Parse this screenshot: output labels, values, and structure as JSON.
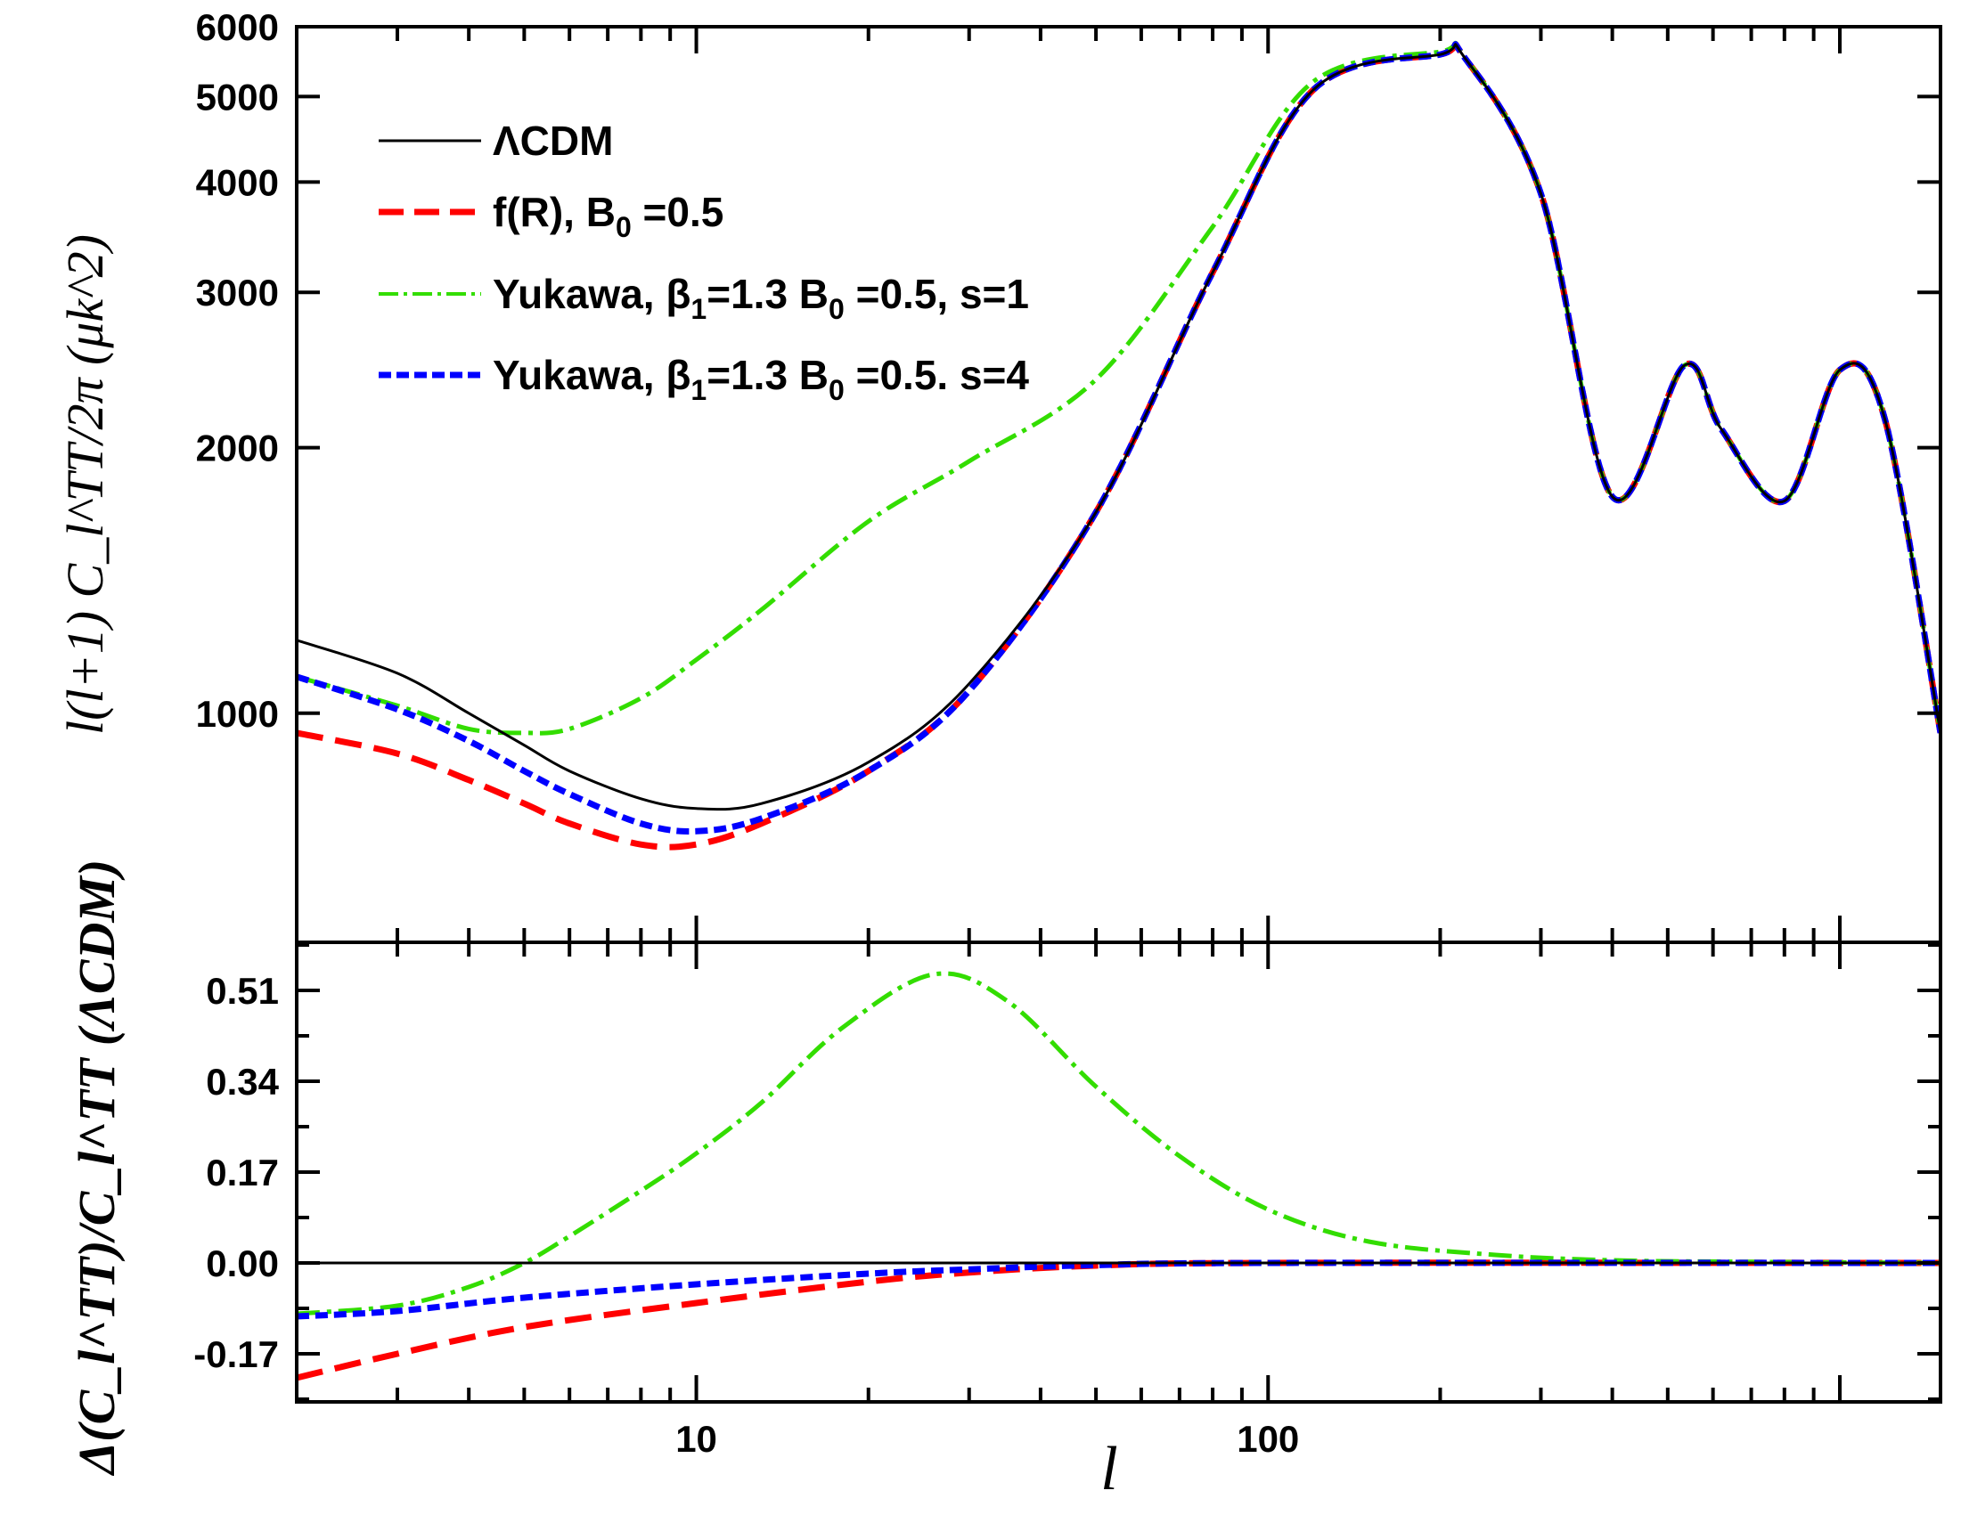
{
  "chart_data": [
    {
      "type": "line",
      "title": "",
      "xlabel": "",
      "ylabel": "l(l+1) C_l^TT/2π (μk^2)",
      "x_scale": "log",
      "y_scale": "log",
      "xlim": [
        2,
        1500
      ],
      "ylim": [
        550,
        6000
      ],
      "yticks": [
        1000,
        2000,
        3000,
        4000,
        5000,
        6000
      ],
      "ytick_labels": [
        "1000",
        "2000",
        "3000",
        "4000",
        "5000",
        "6000"
      ],
      "legend_position": "top-left",
      "series": [
        {
          "name": "ΛCDM",
          "color": "#000000",
          "style": "solid",
          "x": [
            2,
            3,
            4,
            5,
            6,
            8,
            10,
            13,
            20,
            30,
            50,
            80,
            120,
            200,
            220,
            300,
            400,
            535,
            620,
            800,
            1000,
            1200,
            1500
          ],
          "y": [
            1210,
            1110,
            1000,
            920,
            860,
            800,
            780,
            790,
            880,
            1080,
            1690,
            3160,
            5090,
            5580,
            5550,
            3880,
            1760,
            2480,
            2100,
            1740,
            2450,
            2150,
            950
          ]
        },
        {
          "name": "f(R), B_0 =0.5",
          "color": "#ff0000",
          "style": "dashed",
          "x": [
            2,
            3,
            4,
            5,
            6,
            8,
            10,
            13,
            20,
            30,
            50,
            80,
            120,
            200,
            220,
            300,
            400,
            535,
            620,
            800,
            1000,
            1200,
            1500
          ],
          "y": [
            950,
            900,
            840,
            790,
            750,
            710,
            710,
            750,
            860,
            1060,
            1690,
            3160,
            5090,
            5580,
            5550,
            3880,
            1760,
            2480,
            2100,
            1740,
            2450,
            2150,
            950
          ]
        },
        {
          "name": "Yukawa, β_1=1.3 B_0 =0.5, s=1",
          "color": "#33dd00",
          "style": "dash-dot",
          "x": [
            2,
            3,
            4,
            5,
            6,
            8,
            10,
            13,
            20,
            30,
            50,
            80,
            120,
            200,
            220,
            300,
            400,
            535,
            620,
            800,
            1000,
            1200,
            1500
          ],
          "y": [
            1100,
            1020,
            960,
            950,
            960,
            1040,
            1150,
            1310,
            1650,
            1930,
            2390,
            3560,
            5200,
            5620,
            5560,
            3880,
            1760,
            2480,
            2100,
            1740,
            2450,
            2150,
            950
          ]
        },
        {
          "name": "Yukawa, β_1=1.3 B_0 =0.5. s=4",
          "color": "#0000ff",
          "style": "short-dashed",
          "x": [
            2,
            3,
            4,
            5,
            6,
            8,
            10,
            13,
            20,
            30,
            50,
            80,
            120,
            200,
            220,
            300,
            400,
            535,
            620,
            800,
            1000,
            1200,
            1500
          ],
          "y": [
            1100,
            1010,
            930,
            860,
            810,
            750,
            735,
            760,
            860,
            1060,
            1690,
            3160,
            5090,
            5580,
            5550,
            3880,
            1760,
            2480,
            2100,
            1740,
            2450,
            2150,
            950
          ]
        }
      ]
    },
    {
      "type": "line",
      "title": "",
      "xlabel": "l",
      "ylabel": "Δ(C_l^TT)/C_l^TT (ΛCDM)",
      "x_scale": "log",
      "xlim": [
        2,
        1500
      ],
      "ylim": [
        -0.26,
        0.6
      ],
      "yticks": [
        -0.17,
        0,
        0.17,
        0.34,
        0.51
      ],
      "ytick_labels": [
        "-0.17",
        "0.00",
        "0.17",
        "0.34",
        "0.51"
      ],
      "xticks": [
        10,
        100
      ],
      "xtick_labels": [
        "10",
        "100"
      ],
      "series": [
        {
          "name": "ΛCDM",
          "color": "#000000",
          "style": "solid",
          "x": [
            2,
            1500
          ],
          "y": [
            0,
            0
          ]
        },
        {
          "name": "f(R), B_0 =0.5",
          "color": "#ff0000",
          "style": "dashed",
          "x": [
            2,
            3,
            5,
            10,
            20,
            30,
            50,
            100,
            1500
          ],
          "y": [
            -0.215,
            -0.17,
            -0.12,
            -0.075,
            -0.035,
            -0.018,
            -0.005,
            0,
            0
          ]
        },
        {
          "name": "Yukawa, β_1=1.3 B_0 =0.5, s=1",
          "color": "#33dd00",
          "style": "dash-dot",
          "x": [
            2,
            3,
            4,
            5,
            6,
            8,
            10,
            13,
            18,
            26,
            35,
            50,
            70,
            100,
            150,
            250,
            400,
            700,
            1500
          ],
          "y": [
            -0.095,
            -0.08,
            -0.045,
            0,
            0.05,
            0.135,
            0.205,
            0.3,
            0.44,
            0.54,
            0.49,
            0.33,
            0.2,
            0.1,
            0.04,
            0.015,
            0.005,
            0.002,
            0
          ]
        },
        {
          "name": "Yukawa, β_1=1.3 B_0 =0.5. s=4",
          "color": "#0000ff",
          "style": "short-dashed",
          "x": [
            2,
            3,
            5,
            10,
            20,
            30,
            50,
            100,
            1500
          ],
          "y": [
            -0.1,
            -0.09,
            -0.065,
            -0.04,
            -0.02,
            -0.012,
            -0.004,
            0,
            0
          ]
        }
      ]
    }
  ]
}
